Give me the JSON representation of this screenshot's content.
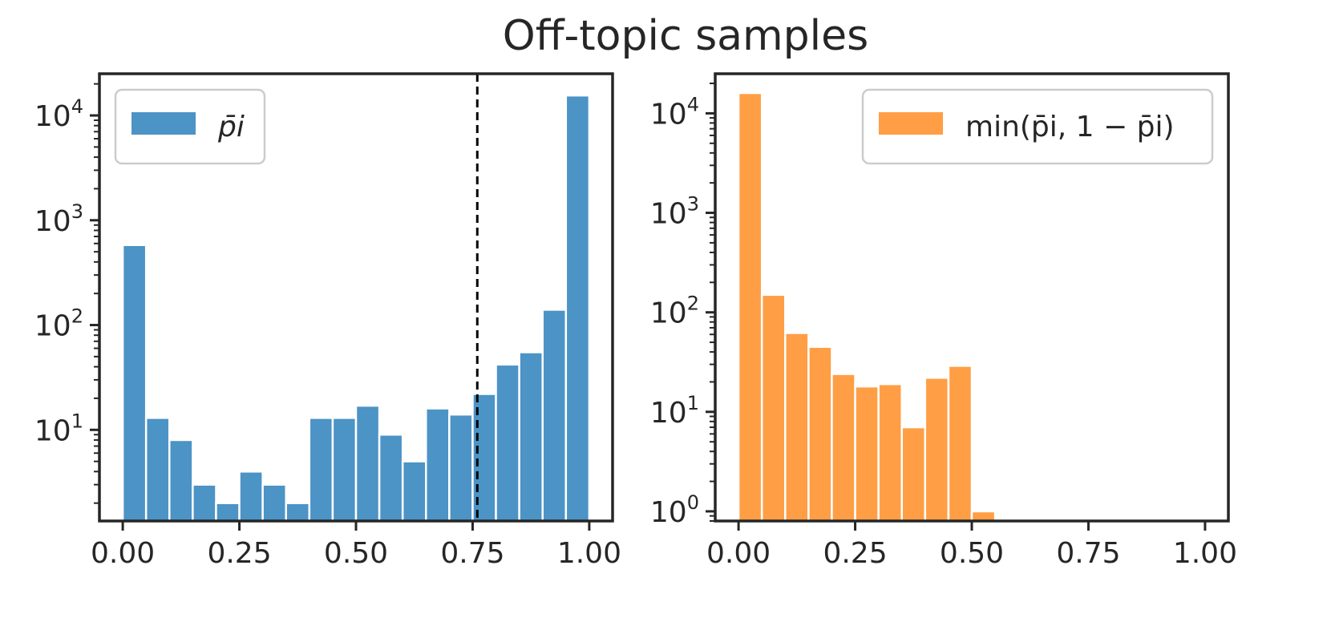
{
  "figure_title": "Off-topic samples",
  "colors": {
    "left": "#4c93c6",
    "right": "#ff9e45",
    "axis": "#262626"
  },
  "chart_data": [
    {
      "type": "bar",
      "panel": "left",
      "scale": "log",
      "legend_label": "p̄i",
      "legend_placement": "top-left",
      "xlim": [
        -0.05,
        1.05
      ],
      "ylim": [
        1.35,
        25000
      ],
      "xticks": [
        "0.00",
        "0.25",
        "0.50",
        "0.75",
        "1.00"
      ],
      "yticks": [
        {
          "base": "10",
          "exp": "1",
          "value": 10
        },
        {
          "base": "10",
          "exp": "2",
          "value": 100
        },
        {
          "base": "10",
          "exp": "3",
          "value": 1000
        },
        {
          "base": "10",
          "exp": "4",
          "value": 10000
        }
      ],
      "bin_edges": [
        0.0,
        0.05,
        0.1,
        0.15,
        0.2,
        0.25,
        0.3,
        0.35,
        0.4,
        0.45,
        0.5,
        0.55,
        0.6,
        0.65,
        0.7,
        0.75,
        0.8,
        0.85,
        0.9,
        0.95,
        1.0
      ],
      "counts": [
        580,
        13,
        8,
        3,
        2,
        4,
        3,
        2,
        13,
        13,
        17,
        9,
        5,
        16,
        14,
        22,
        42,
        55,
        140,
        15500
      ],
      "vline_x": 0.76
    },
    {
      "type": "bar",
      "panel": "right",
      "scale": "log",
      "legend_label": "min(p̄i, 1 − p̄i)",
      "legend_placement": "top-right",
      "xlim": [
        -0.05,
        1.05
      ],
      "ylim": [
        0.8,
        25000
      ],
      "xticks": [
        "0.00",
        "0.25",
        "0.50",
        "0.75",
        "1.00"
      ],
      "yticks": [
        {
          "base": "10",
          "exp": "0",
          "value": 1
        },
        {
          "base": "10",
          "exp": "1",
          "value": 10
        },
        {
          "base": "10",
          "exp": "2",
          "value": 100
        },
        {
          "base": "10",
          "exp": "3",
          "value": 1000
        },
        {
          "base": "10",
          "exp": "4",
          "value": 10000
        }
      ],
      "bin_edges": [
        0.0,
        0.05,
        0.1,
        0.15,
        0.2,
        0.25,
        0.3,
        0.35,
        0.4,
        0.45,
        0.5,
        0.55
      ],
      "counts": [
        16000,
        150,
        62,
        45,
        24,
        18,
        19,
        7,
        22,
        29,
        1
      ]
    }
  ]
}
